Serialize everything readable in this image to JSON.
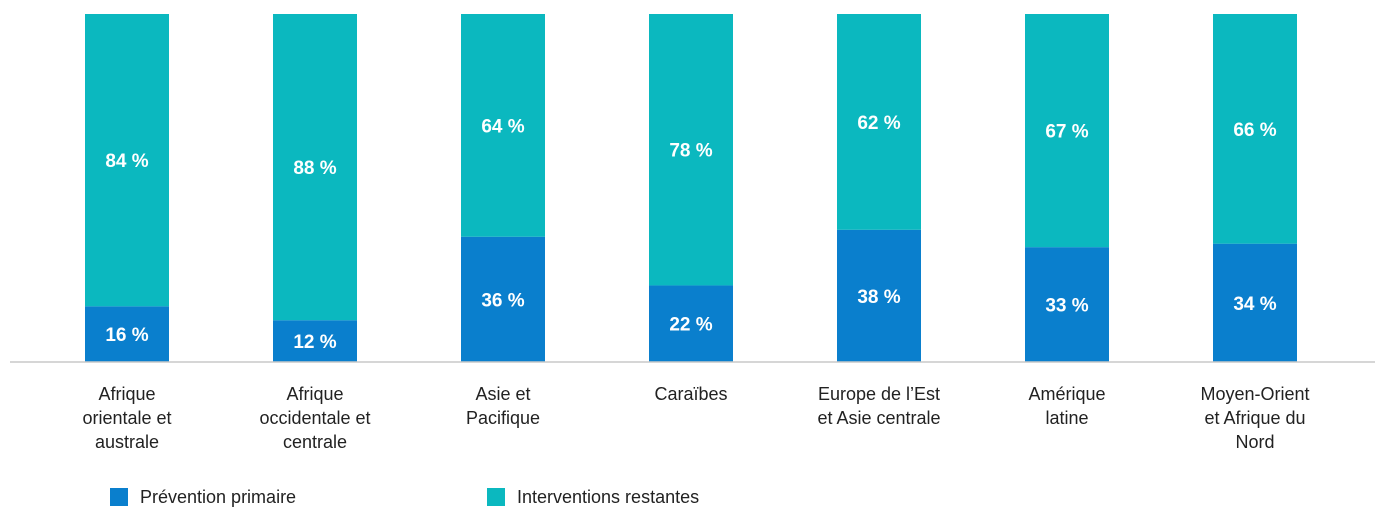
{
  "chart_data": {
    "type": "stacked_bar",
    "categories": [
      "Afrique\norientale et\naustrale",
      "Afrique\noccidentale et\ncentrale",
      "Asie et\nPacifique",
      "Caraïbes",
      "Europe de l’Est\net Asie centrale",
      "Amérique\nlatine",
      "Moyen-Orient\net Afrique du\nNord"
    ],
    "series": [
      {
        "name": "Prévention primaire",
        "color": "#0a7fcd",
        "values": [
          16,
          12,
          36,
          22,
          38,
          33,
          34
        ],
        "value_labels": [
          "16 %",
          "12 %",
          "36 %",
          "22 %",
          "38 %",
          "33 %",
          "34 %"
        ]
      },
      {
        "name": "Interventions restantes",
        "color": "#0bb8bf",
        "values": [
          84,
          88,
          64,
          78,
          62,
          67,
          66
        ],
        "value_labels": [
          "84 %",
          "88 %",
          "64 %",
          "78 %",
          "62 %",
          "67 %",
          "66 %"
        ]
      }
    ],
    "ylim": [
      0,
      100
    ],
    "legend": "bottom-left"
  }
}
